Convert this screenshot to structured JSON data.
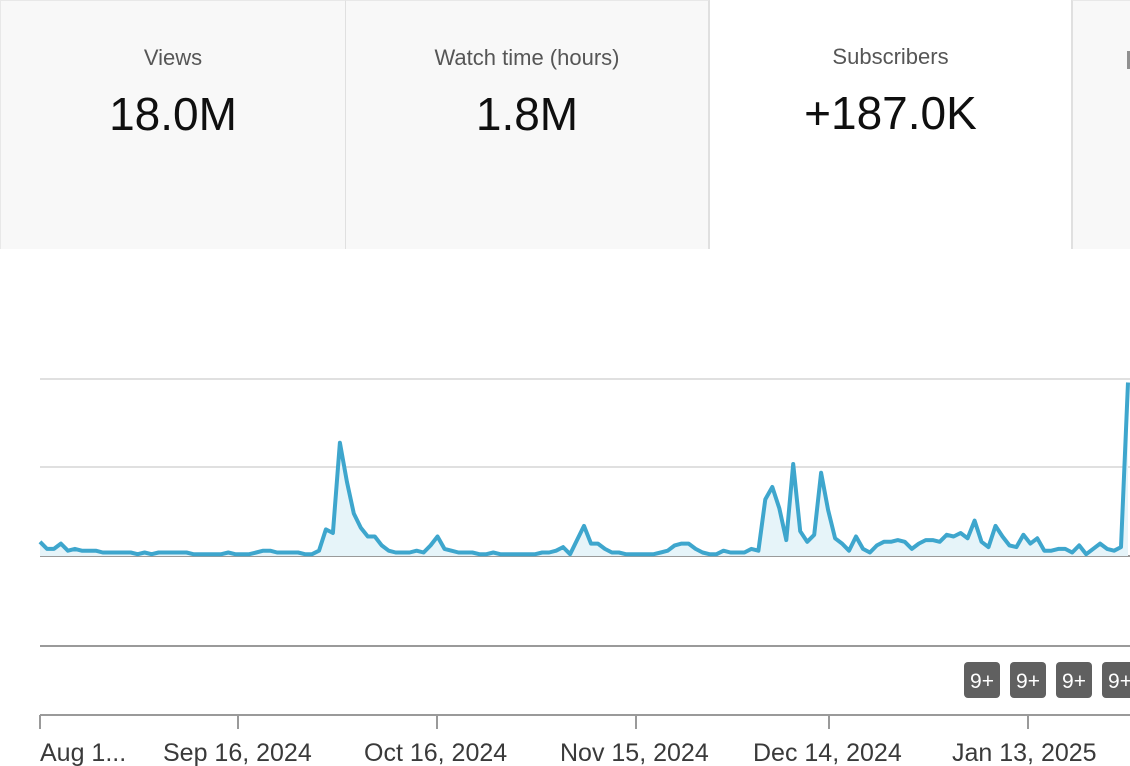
{
  "metrics": [
    {
      "label": "Views",
      "value": "18.0M"
    },
    {
      "label": "Watch time (hours)",
      "value": "1.8M"
    },
    {
      "label": "Subscribers",
      "value": "+187.0K",
      "selected": true
    }
  ],
  "chart_data": {
    "type": "area",
    "series": [
      {
        "values": [
          8,
          4,
          4,
          7,
          3,
          4,
          3,
          3,
          3,
          2,
          2,
          2,
          2,
          2,
          1,
          2,
          1,
          2,
          2,
          2,
          2,
          2,
          1,
          1,
          1,
          1,
          1,
          2,
          1,
          1,
          1,
          2,
          3,
          3,
          2,
          2,
          2,
          2,
          1,
          1,
          3,
          15,
          13,
          64,
          42,
          24,
          16,
          11,
          11,
          6,
          3,
          2,
          2,
          2,
          3,
          2,
          6,
          11,
          4,
          3,
          2,
          2,
          2,
          1,
          1,
          2,
          1,
          1,
          1,
          1,
          1,
          1,
          2,
          2,
          3,
          5,
          1,
          9,
          17,
          7,
          7,
          4,
          2,
          2,
          1,
          1,
          1,
          1,
          1,
          2,
          3,
          6,
          7,
          7,
          4,
          2,
          1,
          1,
          3,
          2,
          2,
          2,
          4,
          3,
          32,
          39,
          27,
          9,
          52,
          14,
          8,
          12,
          47,
          26,
          10,
          7,
          3,
          11,
          4,
          2,
          6,
          8,
          8,
          9,
          8,
          4,
          7,
          9,
          9,
          8,
          12,
          11,
          13,
          10,
          20,
          8,
          5,
          17,
          11,
          6,
          5,
          12,
          7,
          10,
          3,
          3,
          4,
          4,
          2,
          6,
          1,
          4,
          7,
          4,
          3,
          5,
          98
        ]
      }
    ],
    "x_ticks": [
      "Aug 1...",
      "Sep 16, 2024",
      "Oct 16, 2024",
      "Nov 15, 2024",
      "Dec 14, 2024",
      "Jan 13, 2025"
    ],
    "annotations": [
      "9+",
      "9+",
      "9+",
      "9+"
    ],
    "ylim": [
      -57,
      100
    ],
    "grid": true,
    "colors": {
      "line": "#3ea6cd",
      "fill": "#e6f4f9",
      "badge": "#606060"
    }
  }
}
